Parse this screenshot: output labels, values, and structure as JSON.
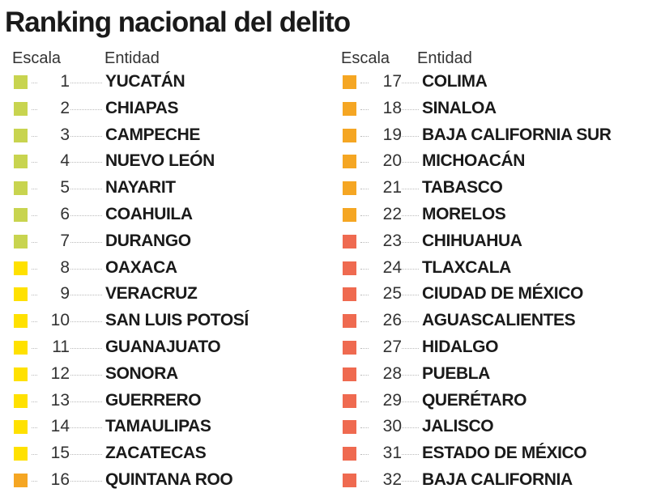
{
  "title": "Ranking nacional del delito",
  "columns": [
    {
      "headers": [
        "Escala",
        "Entidad"
      ],
      "rows": [
        {
          "rank": 1,
          "name": "YUCATÁN",
          "color": "#c8d44f"
        },
        {
          "rank": 2,
          "name": "CHIAPAS",
          "color": "#c8d44f"
        },
        {
          "rank": 3,
          "name": "CAMPECHE",
          "color": "#c8d44f"
        },
        {
          "rank": 4,
          "name": "NUEVO LEÓN",
          "color": "#c8d44f"
        },
        {
          "rank": 5,
          "name": "NAYARIT",
          "color": "#c8d44f"
        },
        {
          "rank": 6,
          "name": "COAHUILA",
          "color": "#c8d44f"
        },
        {
          "rank": 7,
          "name": "DURANGO",
          "color": "#c8d44f"
        },
        {
          "rank": 8,
          "name": "OAXACA",
          "color": "#ffe100"
        },
        {
          "rank": 9,
          "name": "VERACRUZ",
          "color": "#ffe100"
        },
        {
          "rank": 10,
          "name": "SAN LUIS POTOSÍ",
          "color": "#ffe100"
        },
        {
          "rank": 11,
          "name": "GUANAJUATO",
          "color": "#ffe100"
        },
        {
          "rank": 12,
          "name": "SONORA",
          "color": "#ffe100"
        },
        {
          "rank": 13,
          "name": "GUERRERO",
          "color": "#ffe100"
        },
        {
          "rank": 14,
          "name": "TAMAULIPAS",
          "color": "#ffe100"
        },
        {
          "rank": 15,
          "name": "ZACATECAS",
          "color": "#ffe100"
        },
        {
          "rank": 16,
          "name": "QUINTANA ROO",
          "color": "#f5a623"
        }
      ]
    },
    {
      "headers": [
        "Escala",
        "Entidad"
      ],
      "rows": [
        {
          "rank": 17,
          "name": "COLIMA",
          "color": "#f5a623"
        },
        {
          "rank": 18,
          "name": "SINALOA",
          "color": "#f5a623"
        },
        {
          "rank": 19,
          "name": "BAJA CALIFORNIA SUR",
          "color": "#f5a623"
        },
        {
          "rank": 20,
          "name": "MICHOACÁN",
          "color": "#f5a623"
        },
        {
          "rank": 21,
          "name": "TABASCO",
          "color": "#f5a623"
        },
        {
          "rank": 22,
          "name": "MORELOS",
          "color": "#f5a623"
        },
        {
          "rank": 23,
          "name": "CHIHUAHUA",
          "color": "#ef6a50"
        },
        {
          "rank": 24,
          "name": "TLAXCALA",
          "color": "#ef6a50"
        },
        {
          "rank": 25,
          "name": "CIUDAD DE MÉXICO",
          "color": "#ef6a50"
        },
        {
          "rank": 26,
          "name": "AGUASCALIENTES",
          "color": "#ef6a50"
        },
        {
          "rank": 27,
          "name": "HIDALGO",
          "color": "#ef6a50"
        },
        {
          "rank": 28,
          "name": "PUEBLA",
          "color": "#ef6a50"
        },
        {
          "rank": 29,
          "name": "QUERÉTARO",
          "color": "#ef6a50"
        },
        {
          "rank": 30,
          "name": "JALISCO",
          "color": "#ef6a50"
        },
        {
          "rank": 31,
          "name": "ESTADO DE MÉXICO",
          "color": "#ef6a50"
        },
        {
          "rank": 32,
          "name": "BAJA CALIFORNIA",
          "color": "#ef6a50"
        }
      ]
    }
  ]
}
